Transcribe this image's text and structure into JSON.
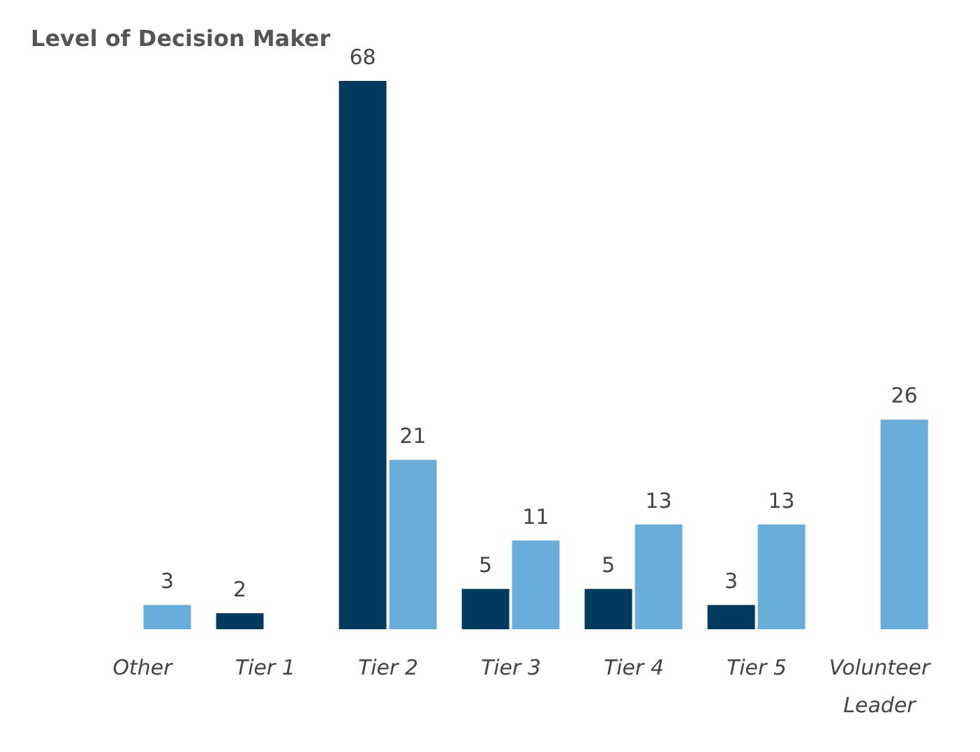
{
  "chart_data": {
    "type": "bar",
    "title": "Level of Decision Maker",
    "categories": [
      "Other",
      "Tier 1",
      "Tier 2",
      "Tier 3",
      "Tier 4",
      "Tier 5",
      "Volunteer Leader"
    ],
    "series": [
      {
        "color": "#003a5c",
        "values": [
          null,
          2,
          68,
          5,
          5,
          3,
          null
        ]
      },
      {
        "color": "#69aedb",
        "values": [
          3,
          null,
          21,
          11,
          13,
          13,
          26
        ]
      }
    ],
    "data_labels": true,
    "grid": false,
    "legend": false
  }
}
